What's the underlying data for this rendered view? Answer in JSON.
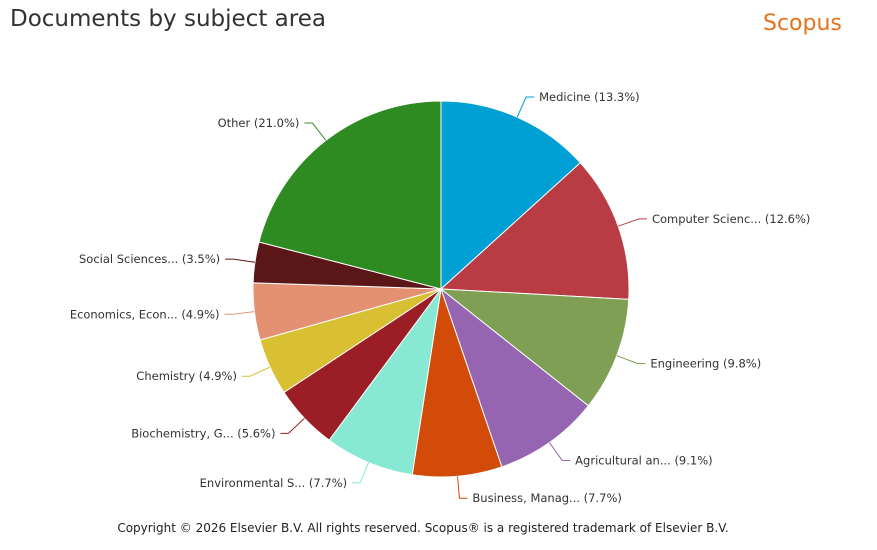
{
  "header": {
    "title": "Documents by subject area",
    "brand": "Scopus"
  },
  "brand_color": "#e9711c",
  "footer": {
    "copyright": "Copyright © 2026 Elsevier B.V. All rights reserved. Scopus® is a registered trademark of Elsevier B.V."
  },
  "chart_data": {
    "type": "pie",
    "title": "Documents by subject area",
    "slices": [
      {
        "label": "Medicine (13.3%)",
        "value": 13.3,
        "color": "#009fd4"
      },
      {
        "label": "Computer Scienc... (12.6%)",
        "value": 12.6,
        "color": "#b93b43"
      },
      {
        "label": "Engineering (9.8%)",
        "value": 9.8,
        "color": "#7e9f54"
      },
      {
        "label": "Agricultural an... (9.1%)",
        "value": 9.1,
        "color": "#9565b2"
      },
      {
        "label": "Business, Manag... (7.7%)",
        "value": 7.7,
        "color": "#d24b08"
      },
      {
        "label": "Environmental S... (7.7%)",
        "value": 7.7,
        "color": "#87e8d4"
      },
      {
        "label": "Biochemistry, G... (5.6%)",
        "value": 5.6,
        "color": "#9b1e26"
      },
      {
        "label": "Chemistry (4.9%)",
        "value": 4.9,
        "color": "#d9bf32"
      },
      {
        "label": "Economics, Econ... (4.9%)",
        "value": 4.9,
        "color": "#e49072"
      },
      {
        "label": "Social Sciences... (3.5%)",
        "value": 3.5,
        "color": "#5b1618"
      },
      {
        "label": "Other (21.0%)",
        "value": 21.0,
        "color": "#2e8b22"
      }
    ]
  }
}
